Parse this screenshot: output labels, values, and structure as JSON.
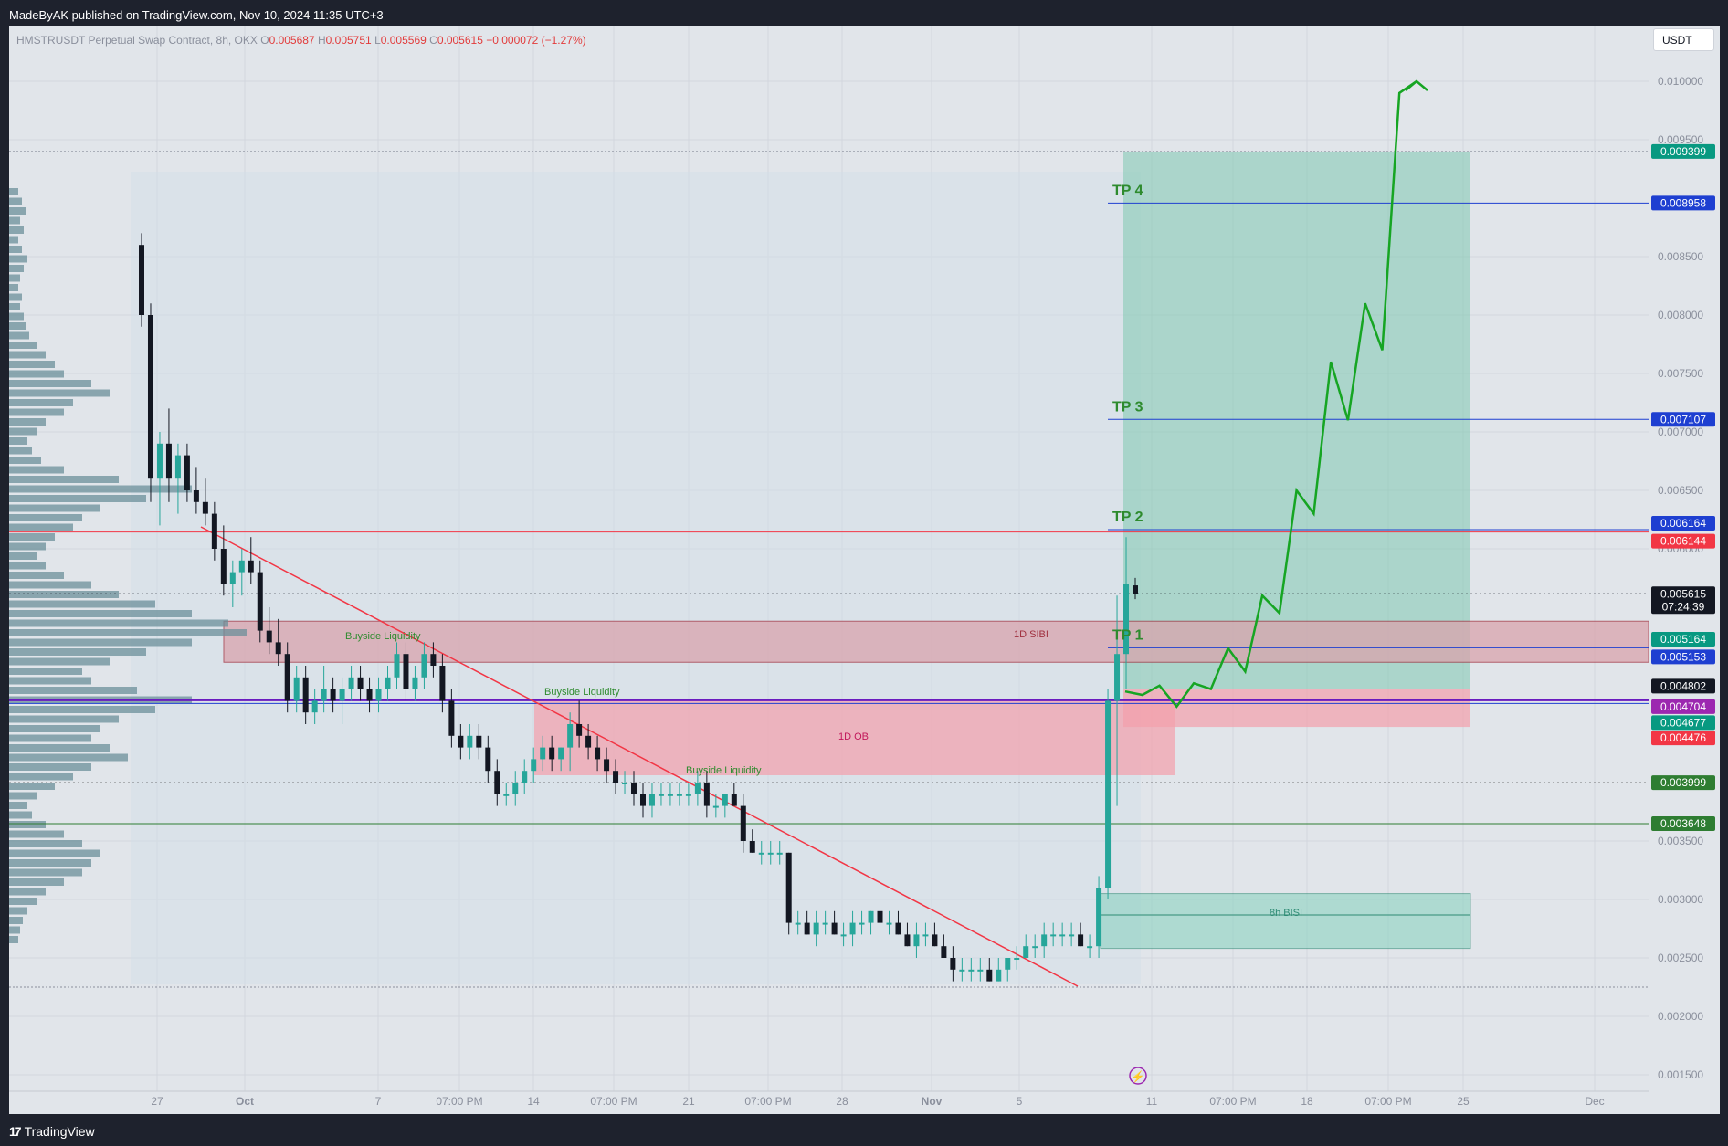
{
  "header": {
    "published": "MadeByAK published on TradingView.com, Nov 10, 2024 11:35 UTC+3"
  },
  "footer": {
    "logo_mark": "17",
    "logo_text": "TradingView"
  },
  "currency_button": "USDT",
  "ohlc": {
    "symbol": "HMSTRUSDT Perpetual Swap Contract, 8h, OKX",
    "o_label": "O",
    "o": "0.005687",
    "h_label": "H",
    "h": "0.005751",
    "l_label": "L",
    "l": "0.005569",
    "c_label": "C",
    "c": "0.005615",
    "change": "−0.000072 (−1.27%)"
  },
  "colors": {
    "background": "#e1e5ea",
    "up": "#26a69a",
    "down": "#131722",
    "projection": "#16a523",
    "trendline": "#f23645",
    "tp_line": "#1e3fd1",
    "ob_zone": "#f4a0ab",
    "target_zone": "#7fc8b0"
  },
  "chart_data": {
    "type": "candlestick",
    "timeframe": "8h",
    "y_axis": {
      "ticks": [
        "0.010000",
        "0.009500",
        "0.008500",
        "0.008000",
        "0.007500",
        "0.007000",
        "0.006500",
        "0.006000",
        "0.003500",
        "0.003000",
        "0.002500",
        "0.002000",
        "0.001500"
      ],
      "ylim": [
        0.0012,
        0.0105
      ]
    },
    "x_axis": {
      "ticks": [
        "27",
        "Oct",
        "7",
        "07:00 PM",
        "14",
        "07:00 PM",
        "21",
        "07:00 PM",
        "28",
        "Nov",
        "5",
        "11",
        "07:00 PM",
        "18",
        "07:00 PM",
        "25",
        "Dec"
      ]
    },
    "price_labels": [
      {
        "value": "0.009399",
        "color": "#089981"
      },
      {
        "value": "0.008958",
        "color": "#1e3fd1"
      },
      {
        "value": "0.007107",
        "color": "#1e3fd1"
      },
      {
        "value": "0.006164",
        "color": "#1e3fd1"
      },
      {
        "value": "0.006144",
        "color": "#f23645"
      },
      {
        "value": "0.005615",
        "sub": "07:24:39",
        "color": "#131722"
      },
      {
        "value": "0.005164",
        "color": "#089981"
      },
      {
        "value": "0.005153",
        "color": "#1e3fd1"
      },
      {
        "value": "0.004802",
        "color": "#131722"
      },
      {
        "value": "0.004704",
        "color": "#9c27b0"
      },
      {
        "value": "0.004677",
        "color": "#089981"
      },
      {
        "value": "0.004476",
        "color": "#f23645"
      },
      {
        "value": "0.003999",
        "color": "#2e7d32"
      },
      {
        "value": "0.003648",
        "color": "#2e7d32"
      }
    ],
    "take_profits": [
      {
        "label": "TP 1",
        "value": 0.005153
      },
      {
        "label": "TP 2",
        "value": 0.006164
      },
      {
        "label": "TP 3",
        "value": 0.007107
      },
      {
        "label": "TP 4",
        "value": 0.008958
      }
    ],
    "annotations": [
      "Buyside Liquidity",
      "Buyside Liquidity",
      "Buyside Liquidity",
      "1D SIBI",
      "1D  OB",
      "8h BISI"
    ],
    "projection_path": [
      0.00478,
      0.00475,
      0.00483,
      0.00465,
      0.00485,
      0.0048,
      0.00515,
      0.00495,
      0.0056,
      0.00545,
      0.0065,
      0.0063,
      0.0076,
      0.0071,
      0.0081,
      0.0077,
      0.0099,
      0.01
    ],
    "candles": [
      [
        0.0086,
        0.0087,
        0.0079,
        0.008
      ],
      [
        0.008,
        0.0081,
        0.0064,
        0.0066
      ],
      [
        0.0066,
        0.007,
        0.0062,
        0.0069
      ],
      [
        0.0069,
        0.0072,
        0.0064,
        0.0066
      ],
      [
        0.0066,
        0.0069,
        0.0063,
        0.0068
      ],
      [
        0.0068,
        0.0069,
        0.0064,
        0.0065
      ],
      [
        0.0065,
        0.0067,
        0.0063,
        0.0064
      ],
      [
        0.0064,
        0.0066,
        0.0062,
        0.0063
      ],
      [
        0.0063,
        0.0064,
        0.0059,
        0.006
      ],
      [
        0.006,
        0.0062,
        0.0056,
        0.0057
      ],
      [
        0.0057,
        0.0059,
        0.0055,
        0.0058
      ],
      [
        0.0058,
        0.006,
        0.0056,
        0.0059
      ],
      [
        0.0059,
        0.0061,
        0.0057,
        0.0058
      ],
      [
        0.0058,
        0.0059,
        0.0052,
        0.0053
      ],
      [
        0.0053,
        0.0055,
        0.0051,
        0.0052
      ],
      [
        0.0052,
        0.0054,
        0.005,
        0.0051
      ],
      [
        0.0051,
        0.0052,
        0.0046,
        0.0047
      ],
      [
        0.0047,
        0.005,
        0.0046,
        0.0049
      ],
      [
        0.0049,
        0.005,
        0.0045,
        0.0046
      ],
      [
        0.0046,
        0.0048,
        0.0045,
        0.0047
      ],
      [
        0.0047,
        0.005,
        0.0046,
        0.0048
      ],
      [
        0.0048,
        0.0049,
        0.0046,
        0.0047
      ],
      [
        0.0047,
        0.0049,
        0.0045,
        0.0048
      ],
      [
        0.0048,
        0.005,
        0.0047,
        0.0049
      ],
      [
        0.0049,
        0.005,
        0.0047,
        0.0048
      ],
      [
        0.0048,
        0.0049,
        0.0046,
        0.0047
      ],
      [
        0.0047,
        0.0049,
        0.0046,
        0.0048
      ],
      [
        0.0048,
        0.005,
        0.0047,
        0.0049
      ],
      [
        0.0049,
        0.0052,
        0.0048,
        0.0051
      ],
      [
        0.0051,
        0.0052,
        0.0047,
        0.0048
      ],
      [
        0.0048,
        0.005,
        0.0047,
        0.0049
      ],
      [
        0.0049,
        0.0052,
        0.0048,
        0.0051
      ],
      [
        0.0051,
        0.0052,
        0.0049,
        0.005
      ],
      [
        0.005,
        0.0051,
        0.0046,
        0.0047
      ],
      [
        0.0047,
        0.0048,
        0.0043,
        0.0044
      ],
      [
        0.0044,
        0.0045,
        0.0042,
        0.0043
      ],
      [
        0.0043,
        0.0045,
        0.0042,
        0.0044
      ],
      [
        0.0044,
        0.0045,
        0.0042,
        0.0043
      ],
      [
        0.0043,
        0.0044,
        0.004,
        0.0041
      ],
      [
        0.0041,
        0.0042,
        0.0038,
        0.0039
      ],
      [
        0.0039,
        0.004,
        0.0038,
        0.0039
      ],
      [
        0.0039,
        0.0041,
        0.0038,
        0.004
      ],
      [
        0.004,
        0.0042,
        0.0039,
        0.0041
      ],
      [
        0.0041,
        0.0043,
        0.004,
        0.0042
      ],
      [
        0.0042,
        0.0044,
        0.0041,
        0.0043
      ],
      [
        0.0043,
        0.0044,
        0.0041,
        0.0042
      ],
      [
        0.0042,
        0.0043,
        0.0041,
        0.0043
      ],
      [
        0.0043,
        0.0046,
        0.0041,
        0.0045
      ],
      [
        0.0045,
        0.0047,
        0.0043,
        0.0044
      ],
      [
        0.0044,
        0.0045,
        0.0042,
        0.0043
      ],
      [
        0.0043,
        0.0044,
        0.0041,
        0.0042
      ],
      [
        0.0042,
        0.0043,
        0.004,
        0.0041
      ],
      [
        0.0041,
        0.0042,
        0.0039,
        0.004
      ],
      [
        0.004,
        0.0041,
        0.0039,
        0.004
      ],
      [
        0.004,
        0.0041,
        0.0038,
        0.0039
      ],
      [
        0.0039,
        0.004,
        0.0037,
        0.0038
      ],
      [
        0.0038,
        0.004,
        0.0037,
        0.0039
      ],
      [
        0.0039,
        0.004,
        0.0038,
        0.0039
      ],
      [
        0.0039,
        0.004,
        0.0038,
        0.0039
      ],
      [
        0.0039,
        0.004,
        0.0038,
        0.0039
      ],
      [
        0.0039,
        0.004,
        0.0038,
        0.0039
      ],
      [
        0.0039,
        0.0041,
        0.0038,
        0.004
      ],
      [
        0.004,
        0.0041,
        0.0037,
        0.0038
      ],
      [
        0.0038,
        0.0039,
        0.0037,
        0.0038
      ],
      [
        0.0038,
        0.0039,
        0.0037,
        0.0039
      ],
      [
        0.0039,
        0.004,
        0.0038,
        0.0038
      ],
      [
        0.0038,
        0.0039,
        0.0034,
        0.0035
      ],
      [
        0.0035,
        0.0036,
        0.0034,
        0.0034
      ],
      [
        0.0034,
        0.0035,
        0.0033,
        0.0034
      ],
      [
        0.0034,
        0.0035,
        0.0033,
        0.0034
      ],
      [
        0.0034,
        0.0035,
        0.0033,
        0.0034
      ],
      [
        0.0034,
        0.0034,
        0.0027,
        0.0028
      ],
      [
        0.0028,
        0.0029,
        0.0027,
        0.0028
      ],
      [
        0.0028,
        0.0029,
        0.0027,
        0.0027
      ],
      [
        0.0027,
        0.0029,
        0.0026,
        0.0028
      ],
      [
        0.0028,
        0.0029,
        0.0027,
        0.0028
      ],
      [
        0.0028,
        0.0029,
        0.0027,
        0.0027
      ],
      [
        0.0027,
        0.0028,
        0.0026,
        0.0027
      ],
      [
        0.0027,
        0.0029,
        0.0026,
        0.0028
      ],
      [
        0.0028,
        0.0029,
        0.0027,
        0.0028
      ],
      [
        0.0028,
        0.0029,
        0.0027,
        0.0029
      ],
      [
        0.0029,
        0.003,
        0.0027,
        0.0028
      ],
      [
        0.0028,
        0.0029,
        0.0027,
        0.0028
      ],
      [
        0.0028,
        0.0029,
        0.0027,
        0.0027
      ],
      [
        0.0027,
        0.0028,
        0.0026,
        0.0026
      ],
      [
        0.0026,
        0.0028,
        0.0025,
        0.0027
      ],
      [
        0.0027,
        0.0028,
        0.0026,
        0.0027
      ],
      [
        0.0027,
        0.0028,
        0.0026,
        0.0026
      ],
      [
        0.0026,
        0.0027,
        0.0025,
        0.0025
      ],
      [
        0.0025,
        0.0026,
        0.0023,
        0.0024
      ],
      [
        0.0024,
        0.0025,
        0.0023,
        0.0024
      ],
      [
        0.0024,
        0.0025,
        0.0023,
        0.0024
      ],
      [
        0.0024,
        0.0025,
        0.0023,
        0.0024
      ],
      [
        0.0024,
        0.0025,
        0.0023,
        0.0023
      ],
      [
        0.0023,
        0.0025,
        0.0023,
        0.0024
      ],
      [
        0.0024,
        0.0025,
        0.0023,
        0.0025
      ],
      [
        0.0025,
        0.0026,
        0.0024,
        0.0025
      ],
      [
        0.0025,
        0.0027,
        0.0025,
        0.0026
      ],
      [
        0.0026,
        0.0027,
        0.0025,
        0.0026
      ],
      [
        0.0026,
        0.0028,
        0.0025,
        0.0027
      ],
      [
        0.0027,
        0.0028,
        0.0026,
        0.0027
      ],
      [
        0.0027,
        0.0028,
        0.0026,
        0.0027
      ],
      [
        0.0027,
        0.0028,
        0.0026,
        0.0027
      ],
      [
        0.0027,
        0.0028,
        0.0026,
        0.0026
      ],
      [
        0.0026,
        0.0027,
        0.0025,
        0.0026
      ],
      [
        0.0026,
        0.0032,
        0.0025,
        0.0031
      ],
      [
        0.0031,
        0.0048,
        0.003,
        0.0047
      ],
      [
        0.0047,
        0.0056,
        0.0038,
        0.0051
      ],
      [
        0.0051,
        0.0061,
        0.0048,
        0.0057
      ],
      [
        0.005687,
        0.005751,
        0.005569,
        0.005615
      ]
    ]
  }
}
